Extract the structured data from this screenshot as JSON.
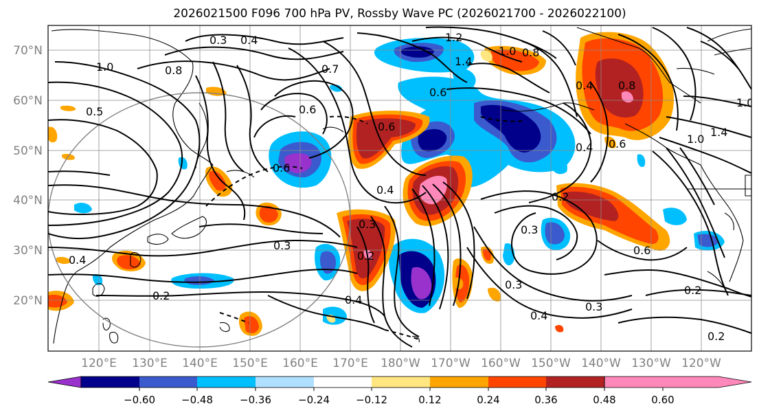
{
  "title": "2026021500 F096 700 hPa PV, Rossby Wave PC (2026021700 - 2026022100)",
  "lat_labels": [
    "70°N",
    "60°N",
    "50°N",
    "40°N",
    "30°N",
    "20°N"
  ],
  "lon_labels": [
    "120°E",
    "130°E",
    "140°E",
    "150°E",
    "160°E",
    "170°E",
    "180°W",
    "170°W",
    "160°W",
    "150°W",
    "140°W",
    "130°W",
    "120°W"
  ],
  "colorbar": {
    "ticks": [
      "−0.60",
      "−0.48",
      "−0.36",
      "−0.24",
      "−0.12",
      "0.12",
      "0.24",
      "0.36",
      "0.48",
      "0.60"
    ],
    "colors": [
      "#9932cc",
      "#00008b",
      "#3a5acd",
      "#00bfff",
      "#b0e0ff",
      "#ffffff",
      "#ffe680",
      "#ffa500",
      "#ff4500",
      "#b22222",
      "#ff88bb"
    ]
  },
  "contour_labels": [
    "0.3",
    "0.4",
    "1.2",
    "1.0",
    "0.8",
    "1.4",
    "0.7",
    "0.6",
    "0.5",
    "0.4",
    "0.8",
    "0.6",
    "1.0",
    "0.6",
    "0.6",
    "0.3",
    "0.2",
    "0.4",
    "0.3",
    "0.4",
    "0.2",
    "0.3",
    "0.4",
    "0.3",
    "0.6",
    "0.2",
    "0.3",
    "0.2",
    "0.4",
    "0.2",
    "0.6",
    "1.4",
    "1.0",
    "0.4",
    "0.8",
    "1.0"
  ],
  "colors": {
    "purple": "#9932cc",
    "navy": "#00008b",
    "blue": "#3a5acd",
    "cyan": "#00bfff",
    "lightblue": "#b0e0ff",
    "yellow": "#ffe680",
    "orange": "#ffa500",
    "red": "#ff4500",
    "darkred": "#b22222",
    "pink": "#ff88bb"
  }
}
